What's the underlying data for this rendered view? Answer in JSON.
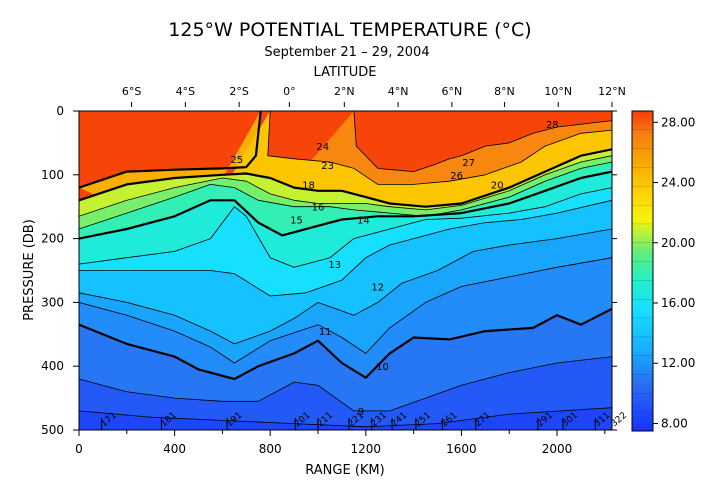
{
  "chart_data": {
    "type": "heatmap",
    "title": "125°W POTENTIAL TEMPERATURE (°C)",
    "subtitle": "September 21 – 29, 2004",
    "top_axis_label": "LATITUDE",
    "xlabel": "RANGE (KM)",
    "ylabel": "PRESSURE (DB)",
    "xlim": [
      0,
      2230
    ],
    "ylim": [
      500,
      0
    ],
    "x_ticks": [
      0,
      400,
      800,
      1200,
      1600,
      2000
    ],
    "y_ticks": [
      0,
      100,
      200,
      300,
      400,
      500
    ],
    "latitude_ticks": [
      {
        "label": "6°S",
        "x": 220
      },
      {
        "label": "4°S",
        "x": 445
      },
      {
        "label": "2°S",
        "x": 670
      },
      {
        "label": "0°",
        "x": 880
      },
      {
        "label": "2°N",
        "x": 1110
      },
      {
        "label": "4°N",
        "x": 1335
      },
      {
        "label": "6°N",
        "x": 1560
      },
      {
        "label": "8°N",
        "x": 1780
      },
      {
        "label": "10°N",
        "x": 2005
      },
      {
        "label": "12°N",
        "x": 2230
      }
    ],
    "colorbar": {
      "min": 7.5,
      "max": 28.75,
      "tick_labels": [
        "28.00",
        "24.00",
        "20.00",
        "16.00",
        "12.00",
        "8.00"
      ]
    },
    "station_labels": [
      {
        "label": "171",
        "x": 95
      },
      {
        "label": "181",
        "x": 345
      },
      {
        "label": "191",
        "x": 620
      },
      {
        "label": "201",
        "x": 905
      },
      {
        "label": "211",
        "x": 1000
      },
      {
        "label": "221",
        "x": 1130
      },
      {
        "label": "231",
        "x": 1225
      },
      {
        "label": "241",
        "x": 1310
      },
      {
        "label": "251",
        "x": 1410
      },
      {
        "label": "261",
        "x": 1520
      },
      {
        "label": "271",
        "x": 1660
      },
      {
        "label": "291",
        "x": 1920
      },
      {
        "label": "301",
        "x": 2025
      },
      {
        "label": "311",
        "x": 2160
      },
      {
        "label": "322",
        "x": 2230
      }
    ],
    "contour_labels": [
      {
        "label": "28",
        "x": 1980,
        "y": 20
      },
      {
        "label": "27",
        "x": 1630,
        "y": 80
      },
      {
        "label": "26",
        "x": 1580,
        "y": 100
      },
      {
        "label": "24",
        "x": 1020,
        "y": 55
      },
      {
        "label": "25",
        "x": 660,
        "y": 75
      },
      {
        "label": "23",
        "x": 1040,
        "y": 85
      },
      {
        "label": "20",
        "x": 1750,
        "y": 115
      },
      {
        "label": "18",
        "x": 960,
        "y": 115
      },
      {
        "label": "16",
        "x": 1000,
        "y": 150
      },
      {
        "label": "15",
        "x": 910,
        "y": 170
      },
      {
        "label": "14",
        "x": 1190,
        "y": 170
      },
      {
        "label": "13",
        "x": 1070,
        "y": 240
      },
      {
        "label": "12",
        "x": 1250,
        "y": 275
      },
      {
        "label": "11",
        "x": 1030,
        "y": 345
      },
      {
        "label": "10",
        "x": 1270,
        "y": 400
      },
      {
        "label": "9",
        "x": 1180,
        "y": 470
      }
    ],
    "isotherms": [
      {
        "temp": 27,
        "points": [
          [
            1150,
            0
          ],
          [
            1160,
            55
          ],
          [
            1250,
            90
          ],
          [
            1400,
            95
          ],
          [
            1480,
            85
          ],
          [
            1550,
            75
          ],
          [
            1600,
            70
          ],
          [
            1700,
            55
          ],
          [
            1800,
            50
          ],
          [
            1900,
            35
          ],
          [
            2000,
            25
          ],
          [
            2230,
            15
          ]
        ]
      },
      {
        "temp": 25,
        "points": [
          [
            760,
            0
          ],
          [
            740,
            70
          ],
          [
            700,
            88
          ],
          [
            600,
            90
          ],
          [
            400,
            92
          ],
          [
            200,
            95
          ],
          [
            0,
            120
          ]
        ]
      },
      {
        "temp": 24,
        "points": [
          [
            800,
            0
          ],
          [
            790,
            70
          ],
          [
            900,
            75
          ],
          [
            1050,
            80
          ],
          [
            1150,
            90
          ],
          [
            1250,
            115
          ],
          [
            1400,
            115
          ],
          [
            1550,
            110
          ],
          [
            1700,
            100
          ],
          [
            1850,
            80
          ],
          [
            1950,
            55
          ],
          [
            2100,
            35
          ],
          [
            2230,
            30
          ]
        ]
      },
      {
        "temp": 20,
        "points": [
          [
            0,
            140
          ],
          [
            200,
            115
          ],
          [
            400,
            105
          ],
          [
            600,
            100
          ],
          [
            700,
            98
          ],
          [
            800,
            105
          ],
          [
            900,
            120
          ],
          [
            1000,
            125
          ],
          [
            1100,
            125
          ],
          [
            1200,
            135
          ],
          [
            1300,
            145
          ],
          [
            1450,
            150
          ],
          [
            1600,
            145
          ],
          [
            1800,
            120
          ],
          [
            1950,
            95
          ],
          [
            2100,
            70
          ],
          [
            2230,
            60
          ]
        ]
      },
      {
        "temp": 18,
        "points": [
          [
            0,
            165
          ],
          [
            200,
            140
          ],
          [
            400,
            120
          ],
          [
            600,
            105
          ],
          [
            700,
            110
          ],
          [
            800,
            130
          ],
          [
            900,
            140
          ],
          [
            1000,
            145
          ],
          [
            1100,
            145
          ],
          [
            1200,
            145
          ],
          [
            1300,
            150
          ],
          [
            1450,
            155
          ],
          [
            1600,
            148
          ],
          [
            1800,
            125
          ],
          [
            1950,
            100
          ],
          [
            2100,
            80
          ],
          [
            2230,
            70
          ]
        ]
      },
      {
        "temp": 16,
        "points": [
          [
            0,
            185
          ],
          [
            200,
            160
          ],
          [
            400,
            135
          ],
          [
            550,
            115
          ],
          [
            650,
            120
          ],
          [
            750,
            140
          ],
          [
            900,
            150
          ],
          [
            1050,
            150
          ],
          [
            1150,
            155
          ],
          [
            1300,
            160
          ],
          [
            1450,
            165
          ],
          [
            1600,
            155
          ],
          [
            1800,
            135
          ],
          [
            1950,
            110
          ],
          [
            2100,
            90
          ],
          [
            2230,
            80
          ]
        ]
      },
      {
        "temp": 15,
        "points": [
          [
            0,
            200
          ],
          [
            200,
            185
          ],
          [
            400,
            165
          ],
          [
            550,
            140
          ],
          [
            650,
            140
          ],
          [
            750,
            175
          ],
          [
            850,
            195
          ],
          [
            1000,
            180
          ],
          [
            1100,
            170
          ],
          [
            1250,
            165
          ],
          [
            1400,
            165
          ],
          [
            1600,
            160
          ],
          [
            1800,
            145
          ],
          [
            1950,
            125
          ],
          [
            2100,
            105
          ],
          [
            2230,
            95
          ]
        ]
      },
      {
        "temp": 14,
        "points": [
          [
            0,
            240
          ],
          [
            200,
            230
          ],
          [
            400,
            220
          ],
          [
            550,
            200
          ],
          [
            650,
            150
          ],
          [
            700,
            165
          ],
          [
            800,
            230
          ],
          [
            900,
            245
          ],
          [
            1050,
            230
          ],
          [
            1150,
            200
          ],
          [
            1300,
            185
          ],
          [
            1450,
            170
          ],
          [
            1600,
            168
          ],
          [
            1800,
            160
          ],
          [
            1950,
            150
          ],
          [
            2100,
            130
          ],
          [
            2230,
            120
          ]
        ]
      },
      {
        "temp": 13,
        "points": [
          [
            0,
            250
          ],
          [
            200,
            250
          ],
          [
            400,
            250
          ],
          [
            550,
            250
          ],
          [
            650,
            255
          ],
          [
            800,
            290
          ],
          [
            950,
            285
          ],
          [
            1100,
            265
          ],
          [
            1200,
            230
          ],
          [
            1300,
            210
          ],
          [
            1400,
            200
          ],
          [
            1550,
            185
          ],
          [
            1700,
            175
          ],
          [
            1850,
            170
          ],
          [
            2000,
            160
          ],
          [
            2230,
            140
          ]
        ]
      },
      {
        "temp": 12,
        "points": [
          [
            0,
            285
          ],
          [
            200,
            300
          ],
          [
            400,
            320
          ],
          [
            550,
            345
          ],
          [
            650,
            365
          ],
          [
            800,
            345
          ],
          [
            900,
            325
          ],
          [
            1000,
            300
          ],
          [
            1150,
            320
          ],
          [
            1250,
            300
          ],
          [
            1350,
            270
          ],
          [
            1500,
            250
          ],
          [
            1650,
            220
          ],
          [
            1800,
            210
          ],
          [
            2000,
            200
          ],
          [
            2230,
            185
          ]
        ]
      },
      {
        "temp": 11,
        "points": [
          [
            0,
            300
          ],
          [
            200,
            320
          ],
          [
            400,
            345
          ],
          [
            550,
            370
          ],
          [
            650,
            395
          ],
          [
            800,
            360
          ],
          [
            1000,
            335
          ],
          [
            1100,
            355
          ],
          [
            1200,
            380
          ],
          [
            1300,
            340
          ],
          [
            1450,
            300
          ],
          [
            1600,
            275
          ],
          [
            1800,
            260
          ],
          [
            2000,
            245
          ],
          [
            2230,
            230
          ]
        ]
      },
      {
        "temp": 10,
        "points": [
          [
            0,
            335
          ],
          [
            200,
            365
          ],
          [
            400,
            385
          ],
          [
            500,
            405
          ],
          [
            650,
            420
          ],
          [
            750,
            400
          ],
          [
            900,
            380
          ],
          [
            1000,
            360
          ],
          [
            1100,
            395
          ],
          [
            1200,
            418
          ],
          [
            1300,
            380
          ],
          [
            1400,
            355
          ],
          [
            1550,
            358
          ],
          [
            1700,
            345
          ],
          [
            1900,
            340
          ],
          [
            2000,
            320
          ],
          [
            2100,
            335
          ],
          [
            2230,
            310
          ]
        ]
      },
      {
        "temp": 9,
        "points": [
          [
            0,
            420
          ],
          [
            200,
            440
          ],
          [
            400,
            450
          ],
          [
            600,
            455
          ],
          [
            750,
            455
          ],
          [
            900,
            425
          ],
          [
            1000,
            430
          ],
          [
            1150,
            470
          ],
          [
            1300,
            470
          ],
          [
            1450,
            450
          ],
          [
            1600,
            430
          ],
          [
            1800,
            410
          ],
          [
            2000,
            395
          ],
          [
            2230,
            385
          ]
        ]
      },
      {
        "temp": 8.5,
        "points": [
          [
            0,
            470
          ],
          [
            300,
            480
          ],
          [
            600,
            485
          ],
          [
            900,
            490
          ],
          [
            1200,
            495
          ],
          [
            1500,
            490
          ],
          [
            1800,
            475
          ],
          [
            2230,
            465
          ]
        ]
      }
    ]
  }
}
